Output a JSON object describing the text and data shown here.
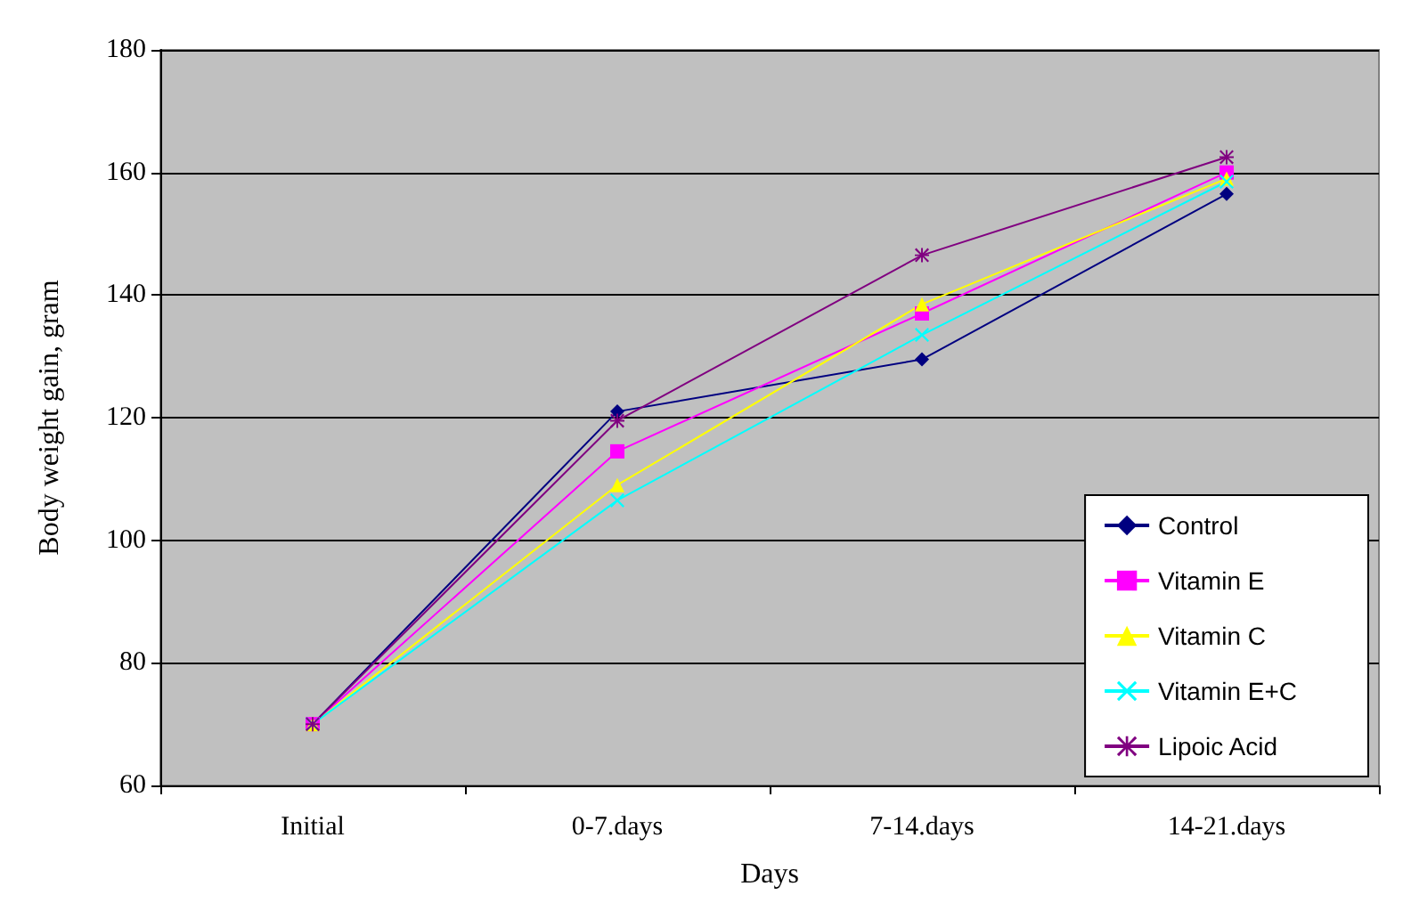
{
  "chart_data": {
    "type": "line",
    "xlabel": "Days",
    "ylabel": "Body weight gain, gram",
    "categories": [
      "Initial",
      "0-7.days",
      "7-14.days",
      "14-21.days"
    ],
    "series": [
      {
        "name": "Control",
        "color": "#000080",
        "marker": "diamond",
        "values": [
          70,
          121,
          129.5,
          156.5
        ]
      },
      {
        "name": "Vitamin E",
        "color": "#ff00ff",
        "marker": "square",
        "values": [
          70,
          114.5,
          137,
          160
        ]
      },
      {
        "name": "Vitamin C",
        "color": "#ffff00",
        "marker": "triangle",
        "values": [
          70,
          109,
          138.5,
          159
        ]
      },
      {
        "name": "Vitamin E+C",
        "color": "#00ffff",
        "marker": "cross",
        "values": [
          70,
          106.5,
          133.5,
          158.5
        ]
      },
      {
        "name": "Lipoic Acid",
        "color": "#800080",
        "marker": "star",
        "values": [
          70,
          119.5,
          146.5,
          162.5
        ]
      }
    ],
    "ylim": [
      60,
      180
    ],
    "yticks": [
      60,
      80,
      100,
      120,
      140,
      160,
      180
    ],
    "grid": "y",
    "legend": "bottom right",
    "line_style": "solid"
  }
}
